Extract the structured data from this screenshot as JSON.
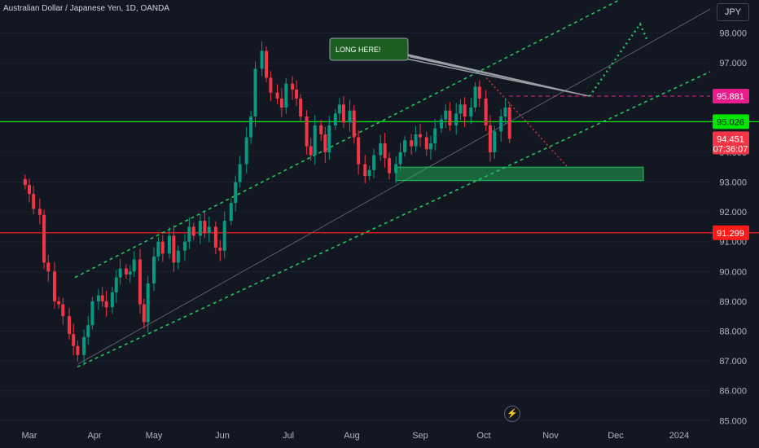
{
  "header": {
    "title": "Australian Dollar / Japanese Yen, 1D, OANDA",
    "currency_button": "JPY"
  },
  "colors": {
    "background": "#131722",
    "bull": "#089981",
    "bear": "#f23645",
    "channel": "#22c55e",
    "support_line": "#00e600",
    "resistance_line": "#ff1a1a",
    "target_tag": "#e91e8c",
    "current_tag": "#f23645",
    "axis_text": "#b2b5be"
  },
  "chart_data": {
    "type": "candlestick",
    "x_ticks": [
      "Mar",
      "Apr",
      "May",
      "Jun",
      "Jul",
      "Aug",
      "Sep",
      "Oct",
      "Nov",
      "Dec",
      "2024"
    ],
    "y_ticks": [
      "98.000",
      "97.000",
      "96.000",
      "95.000",
      "94.000",
      "93.000",
      "92.000",
      "91.000",
      "90.000",
      "89.000",
      "88.000",
      "87.000",
      "86.000",
      "85.000"
    ],
    "ylim": [
      85.0,
      98.3
    ],
    "price_tags": [
      {
        "label": "95.881",
        "price": 95.881,
        "kind": "target"
      },
      {
        "label": "95.026",
        "price": 95.026,
        "kind": "support"
      },
      {
        "label": "94.451",
        "sublabel": "07:36:07",
        "price": 94.451,
        "kind": "current"
      },
      {
        "label": "91.299",
        "price": 91.299,
        "kind": "resistance"
      }
    ],
    "horizontal_lines": [
      {
        "price": 95.026,
        "color": "green"
      },
      {
        "price": 91.299,
        "color": "red"
      },
      {
        "price": 95.881,
        "style": "dashed"
      }
    ],
    "annotation": "LONG HERE!",
    "demand_zone": {
      "from": "Aug 18",
      "to": "Dec 20",
      "low": 93.05,
      "high": 93.5
    },
    "closes": [
      {
        "t": "Feb 27",
        "c": 92.9
      },
      {
        "t": "Mar 1",
        "c": 92.6
      },
      {
        "t": "Mar 3",
        "c": 92.1
      },
      {
        "t": "Mar 6",
        "c": 91.9
      },
      {
        "t": "Mar 8",
        "c": 90.3
      },
      {
        "t": "Mar 10",
        "c": 90.0
      },
      {
        "t": "Mar 13",
        "c": 89.0
      },
      {
        "t": "Mar 15",
        "c": 88.9
      },
      {
        "t": "Mar 17",
        "c": 88.5
      },
      {
        "t": "Mar 20",
        "c": 87.9
      },
      {
        "t": "Mar 22",
        "c": 87.5
      },
      {
        "t": "Mar 24",
        "c": 87.2
      },
      {
        "t": "Mar 27",
        "c": 87.8
      },
      {
        "t": "Mar 29",
        "c": 88.2
      },
      {
        "t": "Mar 31",
        "c": 89.0
      },
      {
        "t": "Apr 3",
        "c": 89.2
      },
      {
        "t": "Apr 5",
        "c": 89.0
      },
      {
        "t": "Apr 7",
        "c": 88.8
      },
      {
        "t": "Apr 10",
        "c": 89.3
      },
      {
        "t": "Apr 12",
        "c": 89.8
      },
      {
        "t": "Apr 14",
        "c": 90.1
      },
      {
        "t": "Apr 17",
        "c": 89.9
      },
      {
        "t": "Apr 19",
        "c": 90.0
      },
      {
        "t": "Apr 21",
        "c": 90.4
      },
      {
        "t": "Apr 24",
        "c": 88.9
      },
      {
        "t": "Apr 26",
        "c": 88.3
      },
      {
        "t": "Apr 28",
        "c": 89.6
      },
      {
        "t": "May 1",
        "c": 90.5
      },
      {
        "t": "May 3",
        "c": 91.0
      },
      {
        "t": "May 5",
        "c": 90.6
      },
      {
        "t": "May 8",
        "c": 91.2
      },
      {
        "t": "May 10",
        "c": 90.3
      },
      {
        "t": "May 12",
        "c": 90.7
      },
      {
        "t": "May 15",
        "c": 91.0
      },
      {
        "t": "May 17",
        "c": 91.5
      },
      {
        "t": "May 19",
        "c": 91.2
      },
      {
        "t": "May 22",
        "c": 91.7
      },
      {
        "t": "May 24",
        "c": 91.3
      },
      {
        "t": "May 26",
        "c": 91.5
      },
      {
        "t": "May 29",
        "c": 90.8
      },
      {
        "t": "May 31",
        "c": 90.7
      },
      {
        "t": "Jun 2",
        "c": 91.7
      },
      {
        "t": "Jun 5",
        "c": 92.3
      },
      {
        "t": "Jun 7",
        "c": 93.0
      },
      {
        "t": "Jun 9",
        "c": 93.6
      },
      {
        "t": "Jun 12",
        "c": 94.5
      },
      {
        "t": "Jun 14",
        "c": 95.2
      },
      {
        "t": "Jun 16",
        "c": 96.8
      },
      {
        "t": "Jun 19",
        "c": 97.4
      },
      {
        "t": "Jun 21",
        "c": 96.5
      },
      {
        "t": "Jun 23",
        "c": 96.0
      },
      {
        "t": "Jun 26",
        "c": 95.8
      },
      {
        "t": "Jun 28",
        "c": 95.5
      },
      {
        "t": "Jun 30",
        "c": 96.3
      },
      {
        "t": "Jul 3",
        "c": 96.1
      },
      {
        "t": "Jul 5",
        "c": 95.8
      },
      {
        "t": "Jul 7",
        "c": 95.2
      },
      {
        "t": "Jul 10",
        "c": 94.2
      },
      {
        "t": "Jul 12",
        "c": 93.9
      },
      {
        "t": "Jul 14",
        "c": 94.9
      },
      {
        "t": "Jul 17",
        "c": 94.6
      },
      {
        "t": "Jul 19",
        "c": 94.0
      },
      {
        "t": "Jul 21",
        "c": 94.9
      },
      {
        "t": "Jul 24",
        "c": 95.3
      },
      {
        "t": "Jul 26",
        "c": 95.6
      },
      {
        "t": "Jul 28",
        "c": 95.0
      },
      {
        "t": "Jul 31",
        "c": 95.4
      },
      {
        "t": "Aug 2",
        "c": 94.5
      },
      {
        "t": "Aug 4",
        "c": 93.6
      },
      {
        "t": "Aug 7",
        "c": 93.2
      },
      {
        "t": "Aug 9",
        "c": 93.4
      },
      {
        "t": "Aug 11",
        "c": 93.9
      },
      {
        "t": "Aug 14",
        "c": 94.3
      },
      {
        "t": "Aug 16",
        "c": 93.8
      },
      {
        "t": "Aug 18",
        "c": 93.3
      },
      {
        "t": "Aug 21",
        "c": 93.6
      },
      {
        "t": "Aug 23",
        "c": 94.0
      },
      {
        "t": "Aug 25",
        "c": 94.4
      },
      {
        "t": "Aug 28",
        "c": 94.2
      },
      {
        "t": "Aug 30",
        "c": 94.6
      },
      {
        "t": "Sep 1",
        "c": 94.5
      },
      {
        "t": "Sep 4",
        "c": 94.1
      },
      {
        "t": "Sep 6",
        "c": 94.3
      },
      {
        "t": "Sep 8",
        "c": 94.8
      },
      {
        "t": "Sep 11",
        "c": 95.1
      },
      {
        "t": "Sep 13",
        "c": 95.4
      },
      {
        "t": "Sep 15",
        "c": 94.9
      },
      {
        "t": "Sep 18",
        "c": 95.3
      },
      {
        "t": "Sep 20",
        "c": 95.6
      },
      {
        "t": "Sep 22",
        "c": 95.2
      },
      {
        "t": "Sep 25",
        "c": 95.5
      },
      {
        "t": "Sep 27",
        "c": 96.2
      },
      {
        "t": "Sep 29",
        "c": 95.8
      },
      {
        "t": "Oct 2",
        "c": 94.9
      },
      {
        "t": "Oct 4",
        "c": 94.0
      },
      {
        "t": "Oct 6",
        "c": 94.7
      },
      {
        "t": "Oct 9",
        "c": 95.2
      },
      {
        "t": "Oct 11",
        "c": 95.5
      },
      {
        "t": "Oct 13",
        "c": 94.451
      }
    ]
  }
}
